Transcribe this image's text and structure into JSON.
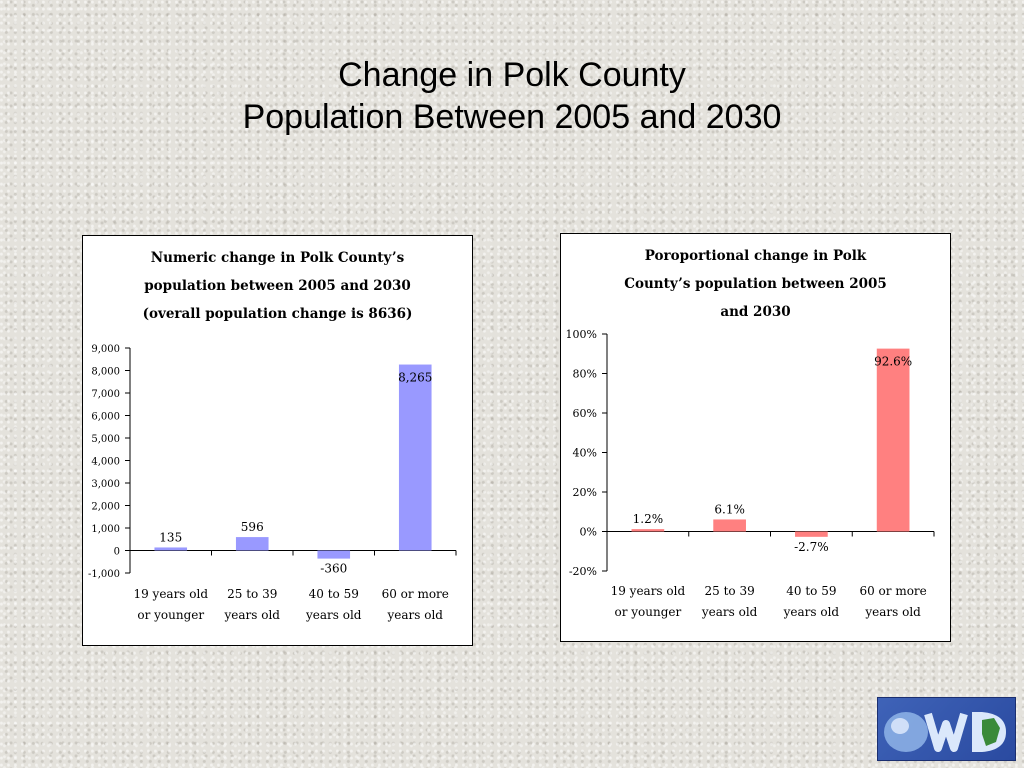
{
  "slide": {
    "title_line1": "Change in Polk County",
    "title_line2": "Population Between 2005 and 2030"
  },
  "chart_data": [
    {
      "type": "bar",
      "title_lines": [
        "Numeric change in Polk County’s",
        "population between 2005 and 2030",
        "(overall population change is 8636)"
      ],
      "categories": [
        [
          "19 years old",
          "or younger"
        ],
        [
          "25 to 39",
          "years old"
        ],
        [
          "40 to 59",
          "years old"
        ],
        [
          "60 or more",
          "years old"
        ]
      ],
      "values": [
        135,
        596,
        -360,
        8265
      ],
      "data_labels": [
        "135",
        "596",
        "-360",
        "8,265"
      ],
      "ylim": [
        -1000,
        9000
      ],
      "yticks": [
        -1000,
        0,
        1000,
        2000,
        3000,
        4000,
        5000,
        6000,
        7000,
        8000,
        9000
      ],
      "ytick_labels": [
        "-1,000",
        "0",
        "1,000",
        "2,000",
        "3,000",
        "4,000",
        "5,000",
        "6,000",
        "7,000",
        "8,000",
        "9,000"
      ],
      "bar_color": "#9999ff",
      "grid": false,
      "legend": "none"
    },
    {
      "type": "bar",
      "title_lines": [
        "Poroportional change in Polk",
        "County’s population between 2005",
        "and 2030"
      ],
      "categories": [
        [
          "19 years old",
          "or younger"
        ],
        [
          "25 to 39",
          "years old"
        ],
        [
          "40 to 59",
          "years old"
        ],
        [
          "60 or more",
          "years old"
        ]
      ],
      "values": [
        1.2,
        6.1,
        -2.7,
        92.6
      ],
      "data_labels": [
        "1.2%",
        "6.1%",
        "-2.7%",
        "92.6%"
      ],
      "ylim": [
        -20,
        100
      ],
      "yticks": [
        -20,
        0,
        20,
        40,
        60,
        80,
        100
      ],
      "ytick_labels": [
        "-20%",
        "0%",
        "20%",
        "40%",
        "60%",
        "80%",
        "100%"
      ],
      "bar_color": "#ff8080",
      "grid": false,
      "legend": "none"
    }
  ],
  "logo": {
    "icon": "dwd-logo-icon"
  }
}
